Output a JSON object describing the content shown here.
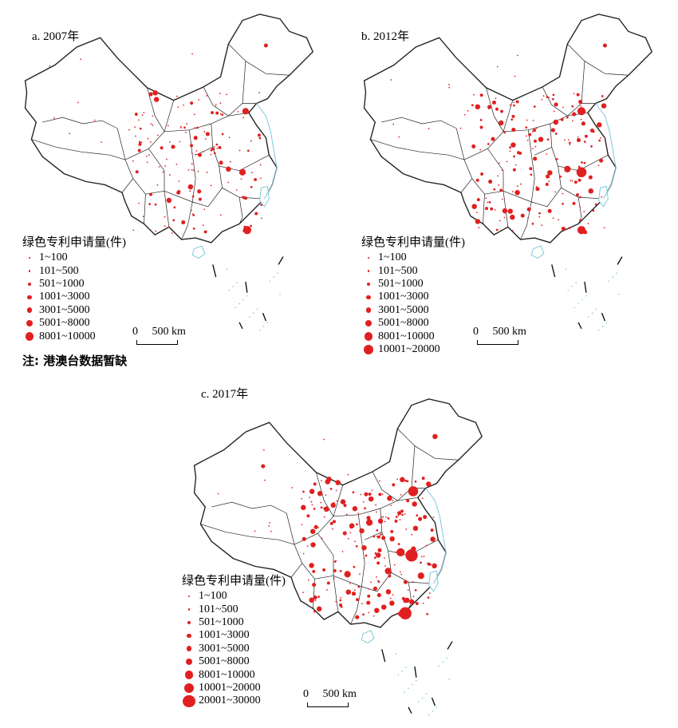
{
  "panels": [
    {
      "title": "a. 2007年"
    },
    {
      "title": "b. 2012年"
    },
    {
      "title": "c. 2017年"
    }
  ],
  "legend_title": "绿色专利申请量(件)",
  "legend_classes": {
    "a": [
      "1~100",
      "101~500",
      "501~1000",
      "1001~3000",
      "3001~5000",
      "5001~8000",
      "8001~10000"
    ],
    "b": [
      "1~100",
      "101~500",
      "501~1000",
      "1001~3000",
      "3001~5000",
      "5001~8000",
      "8001~10000",
      "10001~20000"
    ],
    "c": [
      "1~100",
      "101~500",
      "501~1000",
      "1001~3000",
      "3001~5000",
      "5001~8000",
      "8001~10000",
      "10001~20000",
      "20001~30000"
    ]
  },
  "scale": {
    "zero": "0",
    "label": "500 km"
  },
  "note": "注: 港澳台数据暂缺",
  "colors": {
    "symbol": "#e02020",
    "boundary": "#222222",
    "water": "#7ec8d8"
  }
}
